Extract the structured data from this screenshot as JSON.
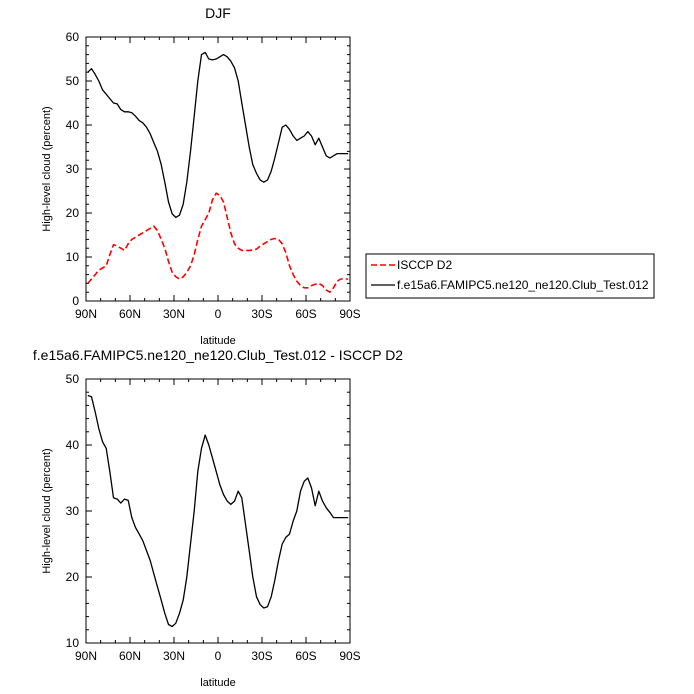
{
  "chart_data": [
    {
      "type": "line",
      "title": "DJF",
      "xlabel": "latitude",
      "ylabel": "High-level cloud (percent)",
      "xlim": [
        90,
        -90
      ],
      "ylim": [
        0,
        60
      ],
      "xticks": [
        90,
        60,
        30,
        0,
        -30,
        -60,
        -90
      ],
      "xtick_labels": [
        "90N",
        "60N",
        "30N",
        "0",
        "30S",
        "60S",
        "90S"
      ],
      "yticks": [
        0,
        10,
        20,
        30,
        40,
        50,
        60
      ],
      "ytick_labels": [
        "0",
        "10",
        "20",
        "30",
        "40",
        "50",
        "60"
      ],
      "grid": false,
      "legend_position": "right",
      "series": [
        {
          "name": "ISCCP D2",
          "color": "#ff0000",
          "dash": "dashed",
          "x": [
            88.75,
            86.25,
            83.75,
            81.25,
            78.75,
            76.25,
            73.75,
            71.25,
            68.75,
            66.25,
            63.75,
            61.25,
            58.75,
            56.25,
            53.75,
            51.25,
            48.75,
            46.25,
            43.75,
            41.25,
            38.75,
            36.25,
            33.75,
            31.25,
            28.75,
            26.25,
            23.75,
            21.25,
            18.75,
            16.25,
            13.75,
            11.25,
            8.75,
            6.25,
            3.75,
            1.25,
            -1.25,
            -3.75,
            -6.25,
            -8.75,
            -11.25,
            -13.75,
            -16.25,
            -18.75,
            -21.25,
            -23.75,
            -26.25,
            -28.75,
            -31.25,
            -33.75,
            -36.25,
            -38.75,
            -41.25,
            -43.75,
            -46.25,
            -48.75,
            -51.25,
            -53.75,
            -56.25,
            -58.75,
            -61.25,
            -63.75,
            -66.25,
            -68.75,
            -71.25,
            -73.75,
            -76.25,
            -78.75,
            -81.25,
            -83.75,
            -86.25,
            -88.75
          ],
          "y": [
            4.0,
            5.0,
            6.0,
            7.0,
            7.5,
            8.0,
            10.5,
            12.8,
            12.5,
            12.0,
            11.5,
            13.0,
            14.0,
            14.5,
            15.0,
            15.5,
            16.0,
            16.5,
            17.0,
            16.0,
            14.0,
            12.0,
            9.0,
            6.5,
            5.5,
            5.0,
            5.5,
            6.5,
            8.0,
            10.5,
            14.0,
            17.0,
            18.5,
            20.0,
            23.0,
            24.5,
            24.0,
            22.5,
            19.0,
            15.5,
            13.0,
            12.0,
            11.5,
            11.5,
            11.5,
            11.6,
            11.8,
            12.5,
            13.0,
            13.5,
            14.0,
            14.2,
            14.0,
            13.0,
            11.0,
            8.0,
            6.0,
            4.5,
            3.5,
            3.0,
            3.0,
            3.5,
            3.8,
            4.0,
            3.5,
            2.5,
            2.0,
            3.0,
            4.5,
            5.0,
            5.0,
            5.0
          ]
        },
        {
          "name": "f.e15a6.FAMIPC5.ne120_ne120.Club_Test.012",
          "color": "#000000",
          "dash": "solid",
          "x": [
            88.75,
            86.25,
            83.75,
            81.25,
            78.75,
            76.25,
            73.75,
            71.25,
            68.75,
            66.25,
            63.75,
            61.25,
            58.75,
            56.25,
            53.75,
            51.25,
            48.75,
            46.25,
            43.75,
            41.25,
            38.75,
            36.25,
            33.75,
            31.25,
            28.75,
            26.25,
            23.75,
            21.25,
            18.75,
            16.25,
            13.75,
            11.25,
            8.75,
            6.25,
            3.75,
            1.25,
            -1.25,
            -3.75,
            -6.25,
            -8.75,
            -11.25,
            -13.75,
            -16.25,
            -18.75,
            -21.25,
            -23.75,
            -26.25,
            -28.75,
            -31.25,
            -33.75,
            -36.25,
            -38.75,
            -41.25,
            -43.75,
            -46.25,
            -48.75,
            -51.25,
            -53.75,
            -56.25,
            -58.75,
            -61.25,
            -63.75,
            -66.25,
            -68.75,
            -71.25,
            -73.75,
            -76.25,
            -78.75,
            -81.25,
            -83.75,
            -86.25,
            -88.75
          ],
          "y": [
            52.0,
            52.8,
            51.5,
            50.0,
            48.0,
            47.0,
            46.0,
            45.0,
            44.8,
            43.5,
            43.0,
            43.0,
            42.8,
            42.0,
            41.0,
            40.5,
            39.5,
            38.0,
            36.0,
            34.0,
            31.0,
            27.0,
            22.5,
            19.8,
            19.0,
            19.5,
            22.0,
            27.0,
            34.0,
            42.0,
            50.0,
            56.0,
            56.5,
            55.0,
            54.8,
            55.0,
            55.5,
            56.0,
            55.5,
            54.5,
            53.0,
            50.0,
            45.0,
            40.0,
            35.0,
            31.0,
            29.0,
            27.5,
            27.0,
            27.5,
            29.5,
            32.5,
            36.0,
            39.5,
            40.0,
            39.0,
            37.5,
            36.5,
            37.0,
            37.5,
            38.5,
            37.5,
            35.5,
            37.0,
            35.0,
            33.0,
            32.5,
            33.0,
            33.5,
            33.5,
            33.5,
            33.5
          ]
        }
      ]
    },
    {
      "type": "line",
      "title": "f.e15a6.FAMIPC5.ne120_ne120.Club_Test.012 - ISCCP D2",
      "xlabel": "latitude",
      "ylabel": "High-level cloud (percent)",
      "xlim": [
        90,
        -90
      ],
      "ylim": [
        10,
        50
      ],
      "xticks": [
        90,
        60,
        30,
        0,
        -30,
        -60,
        -90
      ],
      "xtick_labels": [
        "90N",
        "60N",
        "30N",
        "0",
        "30S",
        "60S",
        "90S"
      ],
      "yticks": [
        10,
        20,
        30,
        40,
        50
      ],
      "ytick_labels": [
        "10",
        "20",
        "30",
        "40",
        "50"
      ],
      "grid": false,
      "series": [
        {
          "color": "#000000",
          "dash": "solid",
          "x": [
            88.75,
            86.25,
            83.75,
            81.25,
            78.75,
            76.25,
            73.75,
            71.25,
            68.75,
            66.25,
            63.75,
            61.25,
            58.75,
            56.25,
            53.75,
            51.25,
            48.75,
            46.25,
            43.75,
            41.25,
            38.75,
            36.25,
            33.75,
            31.25,
            28.75,
            26.25,
            23.75,
            21.25,
            18.75,
            16.25,
            13.75,
            11.25,
            8.75,
            6.25,
            3.75,
            1.25,
            -1.25,
            -3.75,
            -6.25,
            -8.75,
            -11.25,
            -13.75,
            -16.25,
            -18.75,
            -21.25,
            -23.75,
            -26.25,
            -28.75,
            -31.25,
            -33.75,
            -36.25,
            -38.75,
            -41.25,
            -43.75,
            -46.25,
            -48.75,
            -51.25,
            -53.75,
            -56.25,
            -58.75,
            -61.25,
            -63.75,
            -66.25,
            -68.75,
            -71.25,
            -73.75,
            -76.25,
            -78.75,
            -81.25,
            -83.75,
            -86.25,
            -88.75
          ],
          "y": [
            47.5,
            47.3,
            45.0,
            42.5,
            40.5,
            39.5,
            36.0,
            32.0,
            31.8,
            31.2,
            31.8,
            31.6,
            29.0,
            27.5,
            26.5,
            25.5,
            24.0,
            22.5,
            20.5,
            18.5,
            16.5,
            14.5,
            12.8,
            12.5,
            13.0,
            14.5,
            16.5,
            20.0,
            25.0,
            30.0,
            36.0,
            39.5,
            41.5,
            40.0,
            38.0,
            36.0,
            34.0,
            32.5,
            31.5,
            31.0,
            31.5,
            33.0,
            32.0,
            28.0,
            24.0,
            20.0,
            17.0,
            15.8,
            15.3,
            15.5,
            17.0,
            19.5,
            22.5,
            25.0,
            26.0,
            26.5,
            28.5,
            30.0,
            33.0,
            34.5,
            35.0,
            33.5,
            30.8,
            33.0,
            31.5,
            30.5,
            29.8,
            29.0,
            29.0,
            29.0,
            29.0,
            29.0
          ]
        }
      ]
    }
  ]
}
